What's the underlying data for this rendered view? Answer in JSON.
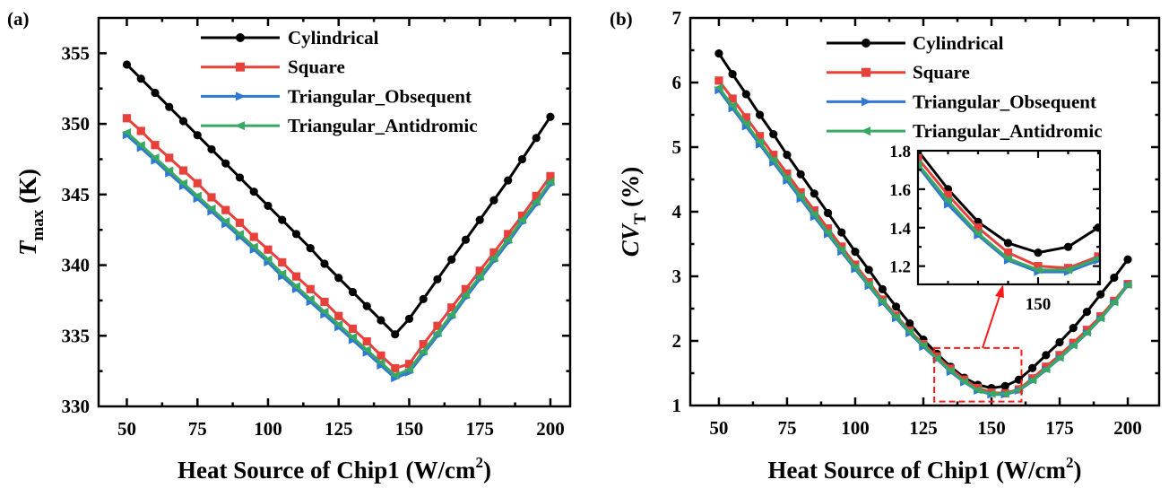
{
  "colors": {
    "Cylindrical": "#000000",
    "Square": "#e8413c",
    "Triangular_Obsequent": "#2e78d6",
    "Triangular_Antidromic": "#3aa865",
    "highlight": "#ff1a1a"
  },
  "chart_data": [
    {
      "panel_label": "(a)",
      "type": "line",
      "xlabel": {
        "text": "Heat Source of Chip1 (W/cm",
        "sup": "2",
        "close": ")"
      },
      "ylabel": {
        "main": "T",
        "sub": "max",
        "unit": " (K)"
      },
      "xlim": [
        40,
        207
      ],
      "ylim": [
        330,
        357.5
      ],
      "xticks": [
        50,
        75,
        100,
        125,
        150,
        175,
        200
      ],
      "yticks": [
        330,
        335,
        340,
        345,
        350,
        355
      ],
      "legend_position": "top-right",
      "x": [
        50,
        55,
        60,
        65,
        70,
        75,
        80,
        85,
        90,
        95,
        100,
        105,
        110,
        115,
        120,
        125,
        130,
        135,
        140,
        145,
        150,
        155,
        160,
        165,
        170,
        175,
        180,
        185,
        190,
        195,
        200
      ],
      "series": [
        {
          "name": "Cylindrical",
          "marker": "circle",
          "values": [
            354.2,
            353.2,
            352.2,
            351.2,
            350.2,
            349.2,
            348.2,
            347.2,
            346.2,
            345.2,
            344.2,
            343.2,
            342.2,
            341.2,
            340.1,
            339.1,
            338.1,
            337.1,
            336.1,
            335.1,
            336.2,
            337.6,
            339.0,
            340.4,
            341.8,
            343.2,
            344.6,
            346.0,
            347.5,
            349.0,
            350.5
          ]
        },
        {
          "name": "Square",
          "marker": "square",
          "values": [
            350.4,
            349.5,
            348.5,
            347.6,
            346.7,
            345.8,
            344.8,
            343.9,
            343.0,
            342.0,
            341.1,
            340.2,
            339.2,
            338.3,
            337.4,
            336.4,
            335.5,
            334.6,
            333.6,
            332.7,
            333.0,
            334.4,
            335.7,
            337.0,
            338.3,
            339.6,
            340.9,
            342.2,
            343.5,
            344.9,
            346.3
          ]
        },
        {
          "name": "Triangular_Obsequent",
          "marker": "triangle-right",
          "values": [
            349.2,
            348.3,
            347.4,
            346.5,
            345.6,
            344.7,
            343.8,
            342.9,
            342.0,
            341.1,
            340.2,
            339.2,
            338.3,
            337.4,
            336.5,
            335.6,
            334.7,
            333.8,
            332.9,
            332.0,
            332.4,
            333.7,
            335.0,
            336.3,
            337.7,
            339.0,
            340.3,
            341.6,
            343.0,
            344.3,
            345.7
          ]
        },
        {
          "name": "Triangular_Antidromic",
          "marker": "triangle-left",
          "values": [
            349.4,
            348.5,
            347.6,
            346.7,
            345.8,
            344.9,
            344.0,
            343.1,
            342.2,
            341.3,
            340.4,
            339.4,
            338.5,
            337.6,
            336.7,
            335.8,
            334.9,
            334.0,
            333.1,
            332.2,
            332.6,
            333.9,
            335.2,
            336.5,
            337.9,
            339.2,
            340.5,
            341.8,
            343.2,
            344.5,
            345.9
          ]
        }
      ]
    },
    {
      "panel_label": "(b)",
      "type": "line",
      "xlabel": {
        "text": "Heat Source of Chip1 (W/cm",
        "sup": "2",
        "close": ")"
      },
      "ylabel": {
        "main": "CV",
        "sub": "T",
        "unit": " (%)"
      },
      "xlim": [
        39.5,
        211.5
      ],
      "ylim": [
        1,
        7
      ],
      "xticks": [
        50,
        75,
        100,
        125,
        150,
        175,
        200
      ],
      "yticks": [
        1,
        2,
        3,
        4,
        5,
        6,
        7
      ],
      "legend_position": "top-right",
      "x": [
        50,
        55,
        60,
        65,
        70,
        75,
        80,
        85,
        90,
        95,
        100,
        105,
        110,
        115,
        120,
        125,
        130,
        135,
        140,
        145,
        150,
        155,
        160,
        165,
        170,
        175,
        180,
        185,
        190,
        195,
        200
      ],
      "series": [
        {
          "name": "Cylindrical",
          "marker": "circle",
          "values": [
            6.45,
            6.13,
            5.82,
            5.5,
            5.2,
            4.88,
            4.58,
            4.28,
            3.98,
            3.68,
            3.38,
            3.1,
            2.8,
            2.53,
            2.27,
            2.02,
            1.8,
            1.6,
            1.43,
            1.32,
            1.27,
            1.3,
            1.4,
            1.58,
            1.78,
            1.98,
            2.2,
            2.45,
            2.72,
            2.98,
            3.26
          ]
        },
        {
          "name": "Square",
          "marker": "square",
          "values": [
            6.03,
            5.75,
            5.46,
            5.17,
            4.88,
            4.59,
            4.3,
            4.02,
            3.74,
            3.46,
            3.18,
            2.91,
            2.64,
            2.39,
            2.16,
            1.95,
            1.76,
            1.57,
            1.4,
            1.27,
            1.2,
            1.19,
            1.25,
            1.42,
            1.6,
            1.78,
            1.97,
            2.17,
            2.38,
            2.62,
            2.88
          ]
        },
        {
          "name": "Triangular_Obsequent",
          "marker": "triangle-right",
          "values": [
            5.88,
            5.6,
            5.32,
            5.04,
            4.76,
            4.48,
            4.2,
            3.92,
            3.65,
            3.38,
            3.11,
            2.85,
            2.59,
            2.35,
            2.12,
            1.91,
            1.72,
            1.52,
            1.36,
            1.23,
            1.17,
            1.17,
            1.23,
            1.38,
            1.55,
            1.73,
            1.92,
            2.12,
            2.34,
            2.59,
            2.86
          ]
        },
        {
          "name": "Triangular_Antidromic",
          "marker": "triangle-left",
          "values": [
            5.92,
            5.64,
            5.36,
            5.08,
            4.8,
            4.52,
            4.24,
            3.96,
            3.68,
            3.41,
            3.14,
            2.87,
            2.61,
            2.37,
            2.14,
            1.93,
            1.73,
            1.54,
            1.37,
            1.24,
            1.18,
            1.18,
            1.24,
            1.39,
            1.56,
            1.74,
            1.93,
            2.13,
            2.35,
            2.6,
            2.87
          ]
        }
      ],
      "inset": {
        "xlim": [
          130,
          160.3
        ],
        "ylim": [
          1.105,
          1.8
        ],
        "xticks": [
          150
        ],
        "yticks": [
          1.2,
          1.4,
          1.6,
          1.8
        ],
        "highlight_region": {
          "x": [
            129,
            161
          ],
          "y": [
            1.06,
            1.89
          ]
        }
      }
    }
  ]
}
